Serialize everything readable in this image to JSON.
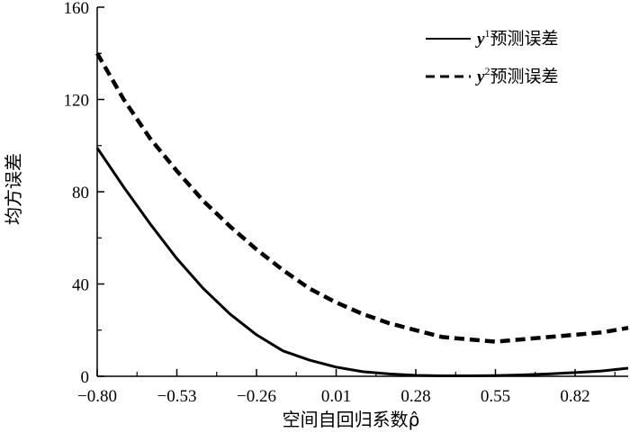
{
  "chart_data": {
    "type": "line",
    "xlabel": "空间自回归系数ρ̂",
    "ylabel": "均方误差",
    "xlim": [
      -0.8,
      1.0
    ],
    "ylim": [
      0,
      160
    ],
    "xticks": [
      -0.8,
      -0.53,
      -0.26,
      0.01,
      0.28,
      0.55,
      0.82
    ],
    "xtick_labels": [
      "−0.80",
      "−0.53",
      "−0.26",
      "0.01",
      "0.28",
      "0.55",
      "0.82"
    ],
    "yticks": [
      0,
      40,
      80,
      120,
      160
    ],
    "ytick_labels": [
      "0",
      "40",
      "80",
      "120",
      "160"
    ],
    "grid": false,
    "legend_position": "top-right",
    "series": [
      {
        "name": "y¹预测误差",
        "var": "y",
        "sup": "1",
        "suffix": "预测误差",
        "style": "solid",
        "x": [
          -0.8,
          -0.71,
          -0.62,
          -0.53,
          -0.44,
          -0.35,
          -0.26,
          -0.17,
          -0.08,
          0.01,
          0.1,
          0.19,
          0.28,
          0.37,
          0.46,
          0.55,
          0.64,
          0.73,
          0.82,
          0.91,
          1.0
        ],
        "y": [
          99,
          82,
          66,
          51,
          38,
          27,
          18,
          11,
          7,
          4,
          2,
          1,
          0.4,
          0.2,
          0.2,
          0.3,
          0.6,
          1.0,
          1.6,
          2.3,
          3.5
        ]
      },
      {
        "name": "y²预测误差",
        "var": "y",
        "sup": "2",
        "suffix": "预测误差",
        "style": "dashed",
        "x": [
          -0.8,
          -0.71,
          -0.62,
          -0.53,
          -0.44,
          -0.35,
          -0.26,
          -0.17,
          -0.08,
          0.01,
          0.1,
          0.19,
          0.28,
          0.37,
          0.46,
          0.55,
          0.64,
          0.73,
          0.82,
          0.91,
          1.0
        ],
        "y": [
          140,
          120,
          103,
          89,
          76,
          65,
          55,
          46,
          38,
          32,
          27,
          23,
          20,
          17,
          16,
          15,
          16,
          17,
          18,
          19,
          21
        ]
      }
    ]
  }
}
